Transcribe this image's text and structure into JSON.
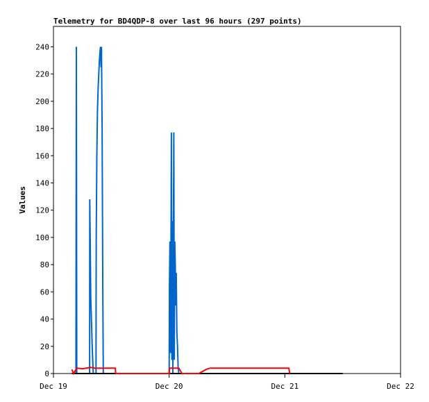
{
  "chart_data": {
    "type": "line",
    "title": "Telemetry for BD4QDP-8 over last 96 hours (297 points)",
    "ylabel": "Values",
    "xlabel": "",
    "ylim": [
      0,
      255
    ],
    "xlim": [
      "Dec 19 00:00",
      "Dec 22 00:00"
    ],
    "x_ticks": [
      "Dec 19",
      "Dec 20",
      "Dec 21",
      "Dec 22"
    ],
    "y_ticks": [
      0,
      20,
      40,
      60,
      80,
      100,
      120,
      140,
      160,
      180,
      200,
      220,
      240
    ],
    "grid": false,
    "legend": "none",
    "series": [
      {
        "color": "#0066cc",
        "points": [
          [
            "Dec 19 04:40",
            0
          ],
          [
            "Dec 19 04:45",
            240
          ],
          [
            "Dec 19 04:50",
            0
          ],
          [
            "Dec 19 07:30",
            0
          ],
          [
            "Dec 19 07:32",
            128
          ],
          [
            "Dec 19 07:38",
            96
          ],
          [
            "Dec 19 07:44",
            57
          ],
          [
            "Dec 19 07:50",
            45
          ],
          [
            "Dec 19 07:56",
            33
          ],
          [
            "Dec 19 08:02",
            20
          ],
          [
            "Dec 19 08:10",
            8
          ],
          [
            "Dec 19 08:16",
            0
          ],
          [
            "Dec 19 08:50",
            0
          ],
          [
            "Dec 19 08:52",
            97
          ],
          [
            "Dec 19 09:00",
            160
          ],
          [
            "Dec 19 09:08",
            193
          ],
          [
            "Dec 19 09:16",
            210
          ],
          [
            "Dec 19 09:24",
            220
          ],
          [
            "Dec 19 09:32",
            230
          ],
          [
            "Dec 19 09:40",
            237
          ],
          [
            "Dec 19 09:46",
            240
          ],
          [
            "Dec 19 09:52",
            225
          ],
          [
            "Dec 19 09:58",
            240
          ],
          [
            "Dec 19 10:06",
            180
          ],
          [
            "Dec 19 10:14",
            60
          ],
          [
            "Dec 19 10:20",
            0
          ],
          [
            "Dec 20 00:00",
            0
          ],
          [
            "Dec 20 00:04",
            64
          ],
          [
            "Dec 20 00:10",
            97
          ],
          [
            "Dec 20 00:16",
            15
          ],
          [
            "Dec 20 00:22",
            80
          ],
          [
            "Dec 20 00:28",
            177
          ],
          [
            "Dec 20 00:34",
            10
          ],
          [
            "Dec 20 00:40",
            112
          ],
          [
            "Dec 20 00:46",
            0
          ],
          [
            "Dec 20 00:52",
            97
          ],
          [
            "Dec 20 00:58",
            177
          ],
          [
            "Dec 20 01:04",
            10
          ],
          [
            "Dec 20 01:10",
            97
          ],
          [
            "Dec 20 01:16",
            80
          ],
          [
            "Dec 20 01:22",
            50
          ],
          [
            "Dec 20 01:28",
            74
          ],
          [
            "Dec 20 01:36",
            30
          ],
          [
            "Dec 20 01:44",
            20
          ],
          [
            "Dec 20 01:52",
            5
          ],
          [
            "Dec 20 02:00",
            0
          ],
          [
            "Dec 21 12:00",
            0
          ]
        ]
      },
      {
        "color": "#000000",
        "points": [
          [
            "Dec 19 03:50",
            0
          ],
          [
            "Dec 21 12:00",
            0
          ]
        ]
      },
      {
        "color": "#ff0000",
        "points": [
          [
            "Dec 19 03:50",
            3
          ],
          [
            "Dec 19 04:10",
            0
          ],
          [
            "Dec 19 04:50",
            4
          ],
          [
            "Dec 19 06:00",
            3.5
          ],
          [
            "Dec 19 07:40",
            4.5
          ],
          [
            "Dec 19 08:30",
            4
          ],
          [
            "Dec 19 12:50",
            4
          ],
          [
            "Dec 19 12:55",
            0
          ],
          [
            "Dec 20 00:00",
            0
          ],
          [
            "Dec 20 00:05",
            4
          ],
          [
            "Dec 20 02:00",
            4
          ],
          [
            "Dec 20 02:40",
            0
          ],
          [
            "Dec 20 06:10",
            0
          ],
          [
            "Dec 20 07:40",
            3
          ],
          [
            "Dec 20 08:30",
            4
          ],
          [
            "Dec 21 00:50",
            4
          ],
          [
            "Dec 21 01:00",
            0
          ]
        ]
      }
    ]
  }
}
